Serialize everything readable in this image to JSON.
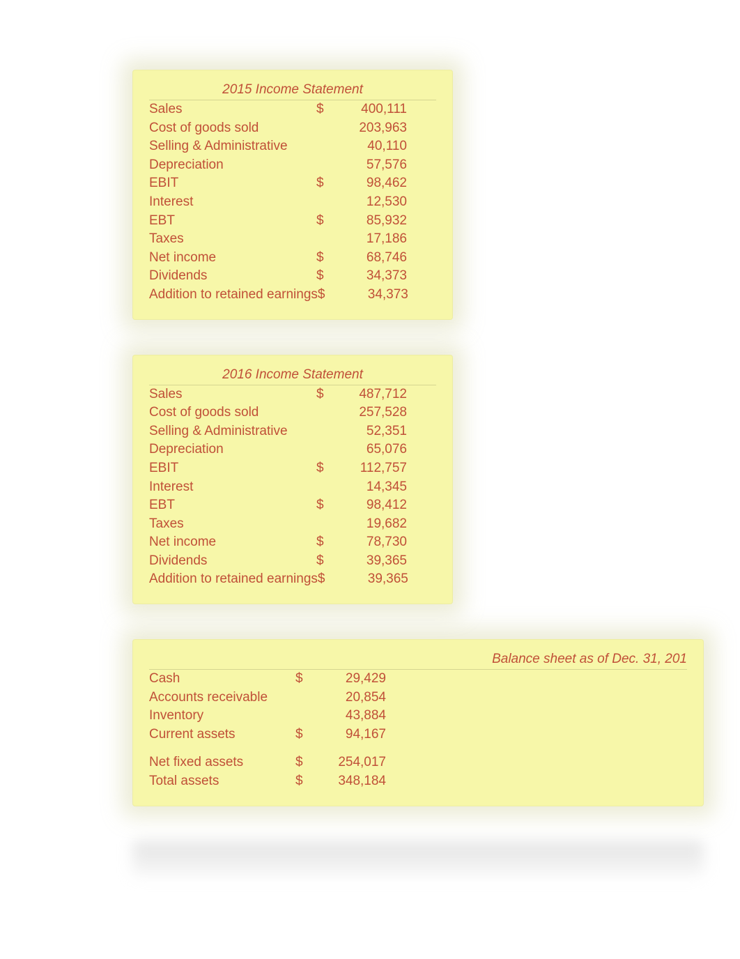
{
  "colors": {
    "panel_bg": "#f7f7a9",
    "text": "#c05038",
    "page_bg": "#ffffff"
  },
  "typography": {
    "font_family": "Arial",
    "base_size_pt": 14,
    "title_size_pt": 14,
    "title_style": "italic"
  },
  "income_2015": {
    "title": "2015 Income Statement",
    "rows": [
      {
        "label": "Sales",
        "sym": "$",
        "val": "400,111",
        "hr": true
      },
      {
        "label": "Cost of goods sold",
        "sym": "",
        "val": "203,963"
      },
      {
        "label": "Selling & Administrative",
        "sym": "",
        "val": "40,110"
      },
      {
        "label": "Depreciation",
        "sym": "",
        "val": "57,576"
      },
      {
        "label": "EBIT",
        "sym": "$",
        "val": "98,462"
      },
      {
        "label": "Interest",
        "sym": "",
        "val": "12,530"
      },
      {
        "label": "EBT",
        "sym": "$",
        "val": "85,932"
      },
      {
        "label": "Taxes",
        "sym": "",
        "val": "17,186"
      },
      {
        "label": "Net income",
        "sym": "$",
        "val": "68,746"
      },
      {
        "label": "Dividends",
        "sym": "$",
        "val": "34,373"
      },
      {
        "label": "Addition to retained earnings",
        "sym": "$",
        "val": "34,373"
      }
    ]
  },
  "income_2016": {
    "title": "2016 Income Statement",
    "rows": [
      {
        "label": "Sales",
        "sym": "$",
        "val": "487,712",
        "hr": true
      },
      {
        "label": "Cost of goods sold",
        "sym": "",
        "val": "257,528"
      },
      {
        "label": "Selling & Administrative",
        "sym": "",
        "val": "52,351"
      },
      {
        "label": "Depreciation",
        "sym": "",
        "val": "65,076"
      },
      {
        "label": "EBIT",
        "sym": "$",
        "val": "112,757"
      },
      {
        "label": "Interest",
        "sym": "",
        "val": "14,345"
      },
      {
        "label": "EBT",
        "sym": "$",
        "val": "98,412"
      },
      {
        "label": "Taxes",
        "sym": "",
        "val": "19,682"
      },
      {
        "label": "Net income",
        "sym": "$",
        "val": "78,730"
      },
      {
        "label": "Dividends",
        "sym": "$",
        "val": "39,365"
      },
      {
        "label": "Addition to retained earnings",
        "sym": "$",
        "val": "39,365"
      }
    ]
  },
  "balance_sheet": {
    "title": "Balance sheet as of Dec. 31, 201",
    "rows": [
      {
        "label": "Cash",
        "sym": "$",
        "val": "29,429",
        "hr": true
      },
      {
        "label": "Accounts receivable",
        "sym": "",
        "val": "20,854"
      },
      {
        "label": "Inventory",
        "sym": "",
        "val": "43,884"
      },
      {
        "label": "Current assets",
        "sym": "$",
        "val": "94,167"
      },
      {
        "gap": true
      },
      {
        "label": "Net fixed assets",
        "sym": "$",
        "val": "254,017"
      },
      {
        "label": "Total assets",
        "sym": "$",
        "val": "348,184"
      }
    ]
  }
}
